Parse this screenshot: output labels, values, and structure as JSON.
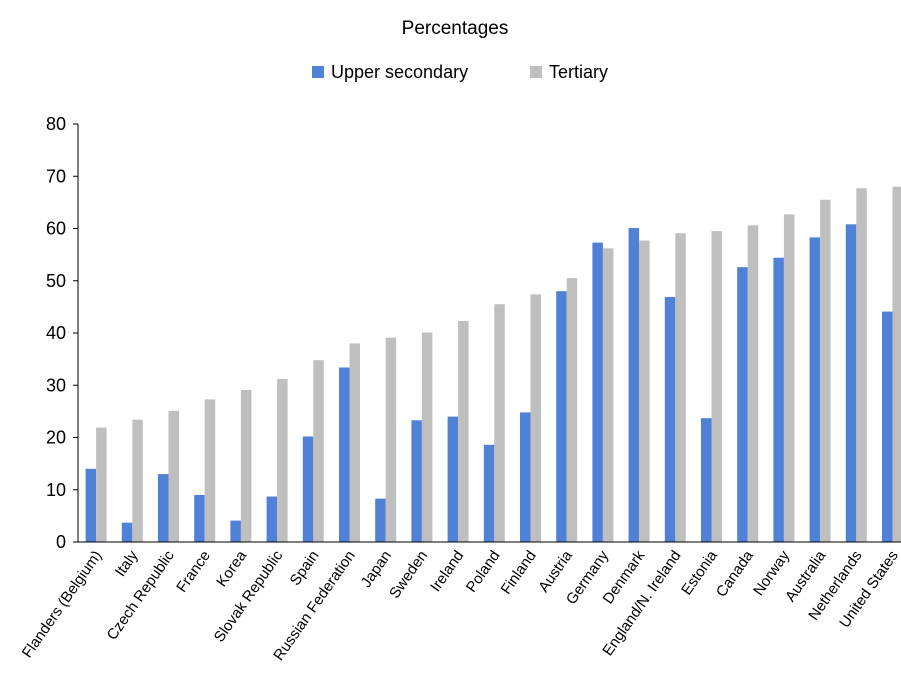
{
  "chart_data": {
    "type": "bar",
    "title": "Percentages",
    "categories": [
      "Flanders (Belgium)",
      "Italy",
      "Czech Republic",
      "France",
      "Korea",
      "Slovak Republic",
      "Spain",
      "Russian Federation",
      "Japan",
      "Sweden",
      "Ireland",
      "Poland",
      "Finland",
      "Austria",
      "Germany",
      "Denmark",
      "England/N. Ireland",
      "Estonia",
      "Canada",
      "Norway",
      "Australia",
      "Netherlands",
      "United States"
    ],
    "series": [
      {
        "name": "Upper secondary",
        "color": "#4f81d6",
        "values": [
          14,
          3.7,
          13,
          9,
          4.1,
          8.7,
          20.2,
          33.4,
          8.3,
          23.3,
          24,
          18.6,
          24.8,
          48,
          57.3,
          60.1,
          46.9,
          23.7,
          52.6,
          54.4,
          58.3,
          60.8,
          44.1
        ]
      },
      {
        "name": "Tertiary",
        "color": "#bfbfbf",
        "values": [
          21.9,
          23.4,
          25.1,
          27.3,
          29.1,
          31.2,
          34.8,
          38,
          39.1,
          40.1,
          42.3,
          45.5,
          47.4,
          50.5,
          56.2,
          57.7,
          59.1,
          59.5,
          60.6,
          62.7,
          65.5,
          67.7,
          68
        ]
      }
    ],
    "ylim": [
      0,
      80
    ],
    "yticks": [
      0,
      10,
      20,
      30,
      40,
      50,
      60,
      70,
      80
    ],
    "xlabel": "",
    "ylabel": "",
    "legend": "top-center",
    "grid": false
  }
}
